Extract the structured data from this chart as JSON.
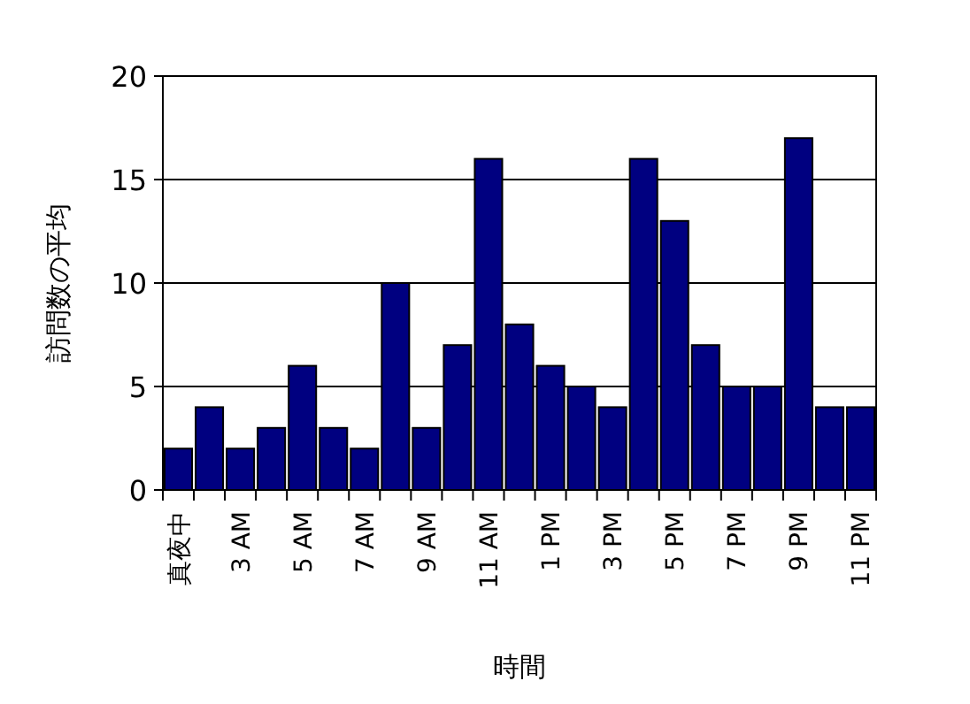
{
  "chart_data": {
    "type": "bar",
    "xlabel": "時間",
    "ylabel": "訪問数の平均",
    "categories": [
      "真夜中",
      null,
      "3 AM",
      null,
      "5 AM",
      null,
      "7 AM",
      null,
      "9 AM",
      null,
      "11 AM",
      null,
      "1 PM",
      null,
      "3 PM",
      null,
      "5 PM",
      null,
      "7 PM",
      null,
      "9 PM",
      null,
      "11 PM"
    ],
    "values": [
      2,
      4,
      2,
      3,
      6,
      3,
      2,
      10,
      3,
      7,
      16,
      8,
      6,
      5,
      4,
      16,
      13,
      7,
      5,
      5,
      17,
      4,
      4
    ],
    "color": "#000080",
    "ylim": [
      0,
      20
    ],
    "yticks": [
      0,
      5,
      10,
      15,
      20
    ],
    "grid": "y"
  }
}
